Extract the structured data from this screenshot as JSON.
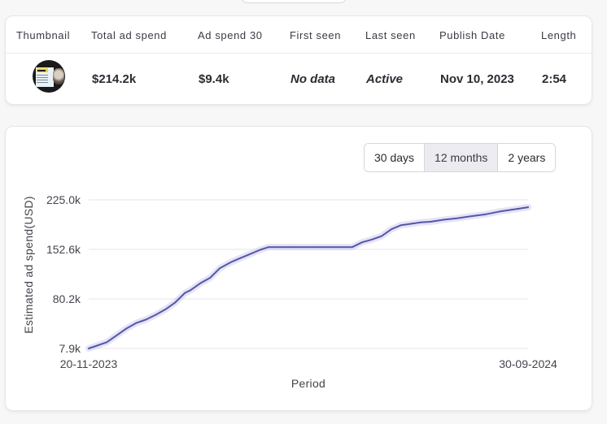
{
  "table": {
    "columns": [
      "Thumbnail",
      "Total ad spend",
      "Ad spend 30",
      "First seen",
      "Last seen",
      "Publish Date",
      "Length"
    ],
    "row": {
      "total_ad_spend": "$214.2k",
      "ad_spend_30": "$9.4k",
      "first_seen": "No data",
      "last_seen": "Active",
      "publish_date": "Nov 10, 2023",
      "length": "2:54"
    }
  },
  "range_buttons": [
    {
      "label": "30 days",
      "active": false
    },
    {
      "label": "12 months",
      "active": true
    },
    {
      "label": "2 years",
      "active": false
    }
  ],
  "colors": {
    "line": "#5656a8",
    "glow": "#c9c9f0",
    "grid": "#e4e4e8",
    "active_button": "#ececf0"
  },
  "chart_data": {
    "type": "line",
    "ylabel": "Estimated ad spend(USD)",
    "xlabel": "Period",
    "x_tick_labels": [
      "20-11-2023",
      "30-09-2024"
    ],
    "y_tick_labels": [
      "7.9k",
      "80.2k",
      "152.6k",
      "225.0k"
    ],
    "ylim": [
      7.9,
      225.0
    ],
    "y_unit": "thousand USD",
    "x_range": [
      "2023-11-20",
      "2024-09-30"
    ],
    "grid": true,
    "series": [
      {
        "points": [
          [
            "2023-11-20",
            7.9
          ],
          [
            "2023-11-26",
            12
          ],
          [
            "2023-12-03",
            17
          ],
          [
            "2023-12-10",
            27
          ],
          [
            "2023-12-17",
            37
          ],
          [
            "2023-12-24",
            45
          ],
          [
            "2023-12-31",
            50
          ],
          [
            "2024-01-07",
            57
          ],
          [
            "2024-01-14",
            65
          ],
          [
            "2024-01-21",
            75
          ],
          [
            "2024-01-28",
            89
          ],
          [
            "2024-02-01",
            93
          ],
          [
            "2024-02-08",
            103
          ],
          [
            "2024-02-15",
            111
          ],
          [
            "2024-02-22",
            125
          ],
          [
            "2024-03-01",
            134
          ],
          [
            "2024-03-08",
            140
          ],
          [
            "2024-03-15",
            146
          ],
          [
            "2024-03-22",
            152
          ],
          [
            "2024-03-28",
            156
          ],
          [
            "2024-04-15",
            156
          ],
          [
            "2024-05-01",
            156
          ],
          [
            "2024-05-20",
            156
          ],
          [
            "2024-05-27",
            156
          ],
          [
            "2024-06-03",
            163
          ],
          [
            "2024-06-10",
            167
          ],
          [
            "2024-06-17",
            172
          ],
          [
            "2024-06-24",
            182
          ],
          [
            "2024-07-01",
            188
          ],
          [
            "2024-07-08",
            190
          ],
          [
            "2024-07-15",
            192
          ],
          [
            "2024-07-22",
            193
          ],
          [
            "2024-08-01",
            196
          ],
          [
            "2024-08-10",
            198
          ],
          [
            "2024-08-20",
            201
          ],
          [
            "2024-08-31",
            204
          ],
          [
            "2024-09-10",
            208
          ],
          [
            "2024-09-20",
            211
          ],
          [
            "2024-09-30",
            214.2
          ]
        ]
      }
    ]
  }
}
